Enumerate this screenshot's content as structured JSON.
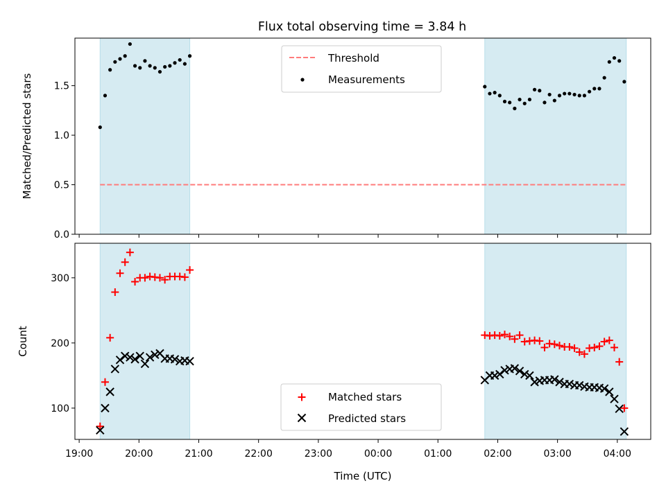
{
  "title": "Flux total observing time = 3.84 h",
  "colors": {
    "shade": "#add8e6",
    "threshold": "#ff7b7b",
    "measurements": "#000000",
    "matched": "#ff0000",
    "predicted": "#000000"
  },
  "chart_data": [
    {
      "type": "scatter",
      "ylabel": "Matched/Predicted stars",
      "ylim": [
        0,
        1.98
      ],
      "yticks": [
        "0.0",
        "0.5",
        "1.0",
        "1.5"
      ],
      "shaded_ranges": [
        [
          "19:21",
          "20:51"
        ],
        [
          "01:47",
          "04:09"
        ]
      ],
      "threshold": {
        "name": "Threshold",
        "y": 0.5,
        "x_range": [
          "19:21",
          "04:09"
        ]
      },
      "legend": {
        "position": "upper center",
        "entries": [
          "Threshold",
          "Measurements"
        ]
      },
      "series": [
        {
          "name": "Measurements",
          "points": [
            [
              "19:21",
              1.08
            ],
            [
              "19:26",
              1.4
            ],
            [
              "19:31",
              1.66
            ],
            [
              "19:36",
              1.74
            ],
            [
              "19:41",
              1.77
            ],
            [
              "19:46",
              1.8
            ],
            [
              "19:51",
              1.92
            ],
            [
              "19:56",
              1.7
            ],
            [
              "20:01",
              1.68
            ],
            [
              "20:06",
              1.75
            ],
            [
              "20:11",
              1.7
            ],
            [
              "20:16",
              1.68
            ],
            [
              "20:21",
              1.64
            ],
            [
              "20:26",
              1.69
            ],
            [
              "20:31",
              1.7
            ],
            [
              "20:36",
              1.73
            ],
            [
              "20:41",
              1.76
            ],
            [
              "20:46",
              1.72
            ],
            [
              "20:51",
              1.8
            ],
            [
              "01:47",
              1.49
            ],
            [
              "01:52",
              1.42
            ],
            [
              "01:57",
              1.43
            ],
            [
              "02:02",
              1.4
            ],
            [
              "02:07",
              1.34
            ],
            [
              "02:12",
              1.33
            ],
            [
              "02:17",
              1.27
            ],
            [
              "02:22",
              1.36
            ],
            [
              "02:27",
              1.32
            ],
            [
              "02:32",
              1.36
            ],
            [
              "02:37",
              1.46
            ],
            [
              "02:42",
              1.45
            ],
            [
              "02:47",
              1.33
            ],
            [
              "02:52",
              1.41
            ],
            [
              "02:57",
              1.35
            ],
            [
              "03:02",
              1.4
            ],
            [
              "03:07",
              1.42
            ],
            [
              "03:12",
              1.42
            ],
            [
              "03:17",
              1.41
            ],
            [
              "03:22",
              1.4
            ],
            [
              "03:27",
              1.4
            ],
            [
              "03:32",
              1.44
            ],
            [
              "03:37",
              1.47
            ],
            [
              "03:42",
              1.47
            ],
            [
              "03:47",
              1.58
            ],
            [
              "03:52",
              1.74
            ],
            [
              "03:57",
              1.78
            ],
            [
              "04:02",
              1.75
            ],
            [
              "04:07",
              1.54
            ]
          ]
        }
      ]
    },
    {
      "type": "scatter",
      "xlabel": "Time (UTC)",
      "ylabel": "Count",
      "ylim": [
        52,
        353
      ],
      "yticks": [
        "100",
        "200",
        "300"
      ],
      "xticks": [
        "19:00",
        "20:00",
        "21:00",
        "22:00",
        "23:00",
        "00:00",
        "01:00",
        "02:00",
        "03:00",
        "04:00"
      ],
      "shaded_ranges": [
        [
          "19:21",
          "20:51"
        ],
        [
          "01:47",
          "04:09"
        ]
      ],
      "legend": {
        "position": "lower center",
        "entries": [
          "Matched stars",
          "Predicted stars"
        ]
      },
      "series": [
        {
          "name": "Matched stars",
          "marker": "+",
          "points": [
            [
              "19:21",
              72
            ],
            [
              "19:26",
              140
            ],
            [
              "19:31",
              208
            ],
            [
              "19:36",
              278
            ],
            [
              "19:41",
              307
            ],
            [
              "19:46",
              324
            ],
            [
              "19:51",
              339
            ],
            [
              "19:56",
              294
            ],
            [
              "20:01",
              300
            ],
            [
              "20:06",
              300
            ],
            [
              "20:11",
              302
            ],
            [
              "20:16",
              301
            ],
            [
              "20:21",
              300
            ],
            [
              "20:26",
              297
            ],
            [
              "20:31",
              302
            ],
            [
              "20:36",
              302
            ],
            [
              "20:41",
              302
            ],
            [
              "20:46",
              301
            ],
            [
              "20:51",
              312
            ],
            [
              "01:47",
              212
            ],
            [
              "01:52",
              211
            ],
            [
              "01:57",
              212
            ],
            [
              "02:02",
              211
            ],
            [
              "02:07",
              213
            ],
            [
              "02:12",
              210
            ],
            [
              "02:17",
              206
            ],
            [
              "02:22",
              212
            ],
            [
              "02:27",
              202
            ],
            [
              "02:32",
              203
            ],
            [
              "02:37",
              204
            ],
            [
              "02:42",
              203
            ],
            [
              "02:47",
              193
            ],
            [
              "02:52",
              199
            ],
            [
              "02:57",
              198
            ],
            [
              "03:02",
              196
            ],
            [
              "03:07",
              194
            ],
            [
              "03:12",
              194
            ],
            [
              "03:17",
              192
            ],
            [
              "03:22",
              186
            ],
            [
              "03:27",
              183
            ],
            [
              "03:32",
              192
            ],
            [
              "03:37",
              193
            ],
            [
              "03:42",
              195
            ],
            [
              "03:47",
              202
            ],
            [
              "03:52",
              204
            ],
            [
              "03:57",
              193
            ],
            [
              "04:02",
              171
            ],
            [
              "04:07",
              100
            ]
          ]
        },
        {
          "name": "Predicted stars",
          "marker": "x",
          "points": [
            [
              "19:21",
              66
            ],
            [
              "19:26",
              100
            ],
            [
              "19:31",
              125
            ],
            [
              "19:36",
              160
            ],
            [
              "19:41",
              174
            ],
            [
              "19:46",
              180
            ],
            [
              "19:51",
              178
            ],
            [
              "19:56",
              175
            ],
            [
              "20:01",
              180
            ],
            [
              "20:06",
              168
            ],
            [
              "20:11",
              178
            ],
            [
              "20:16",
              182
            ],
            [
              "20:21",
              184
            ],
            [
              "20:26",
              176
            ],
            [
              "20:31",
              176
            ],
            [
              "20:36",
              175
            ],
            [
              "20:41",
              172
            ],
            [
              "20:46",
              173
            ],
            [
              "20:51",
              172
            ],
            [
              "01:47",
              143
            ],
            [
              "01:52",
              150
            ],
            [
              "01:57",
              150
            ],
            [
              "02:02",
              152
            ],
            [
              "02:07",
              158
            ],
            [
              "02:12",
              160
            ],
            [
              "02:17",
              161
            ],
            [
              "02:22",
              157
            ],
            [
              "02:27",
              152
            ],
            [
              "02:32",
              150
            ],
            [
              "02:37",
              140
            ],
            [
              "02:42",
              142
            ],
            [
              "02:47",
              143
            ],
            [
              "02:52",
              143
            ],
            [
              "02:57",
              144
            ],
            [
              "03:02",
              140
            ],
            [
              "03:07",
              137
            ],
            [
              "03:12",
              137
            ],
            [
              "03:17",
              135
            ],
            [
              "03:22",
              135
            ],
            [
              "03:27",
              133
            ],
            [
              "03:32",
              132
            ],
            [
              "03:37",
              132
            ],
            [
              "03:42",
              131
            ],
            [
              "03:47",
              130
            ],
            [
              "03:52",
              125
            ],
            [
              "03:57",
              114
            ],
            [
              "04:02",
              99
            ],
            [
              "04:07",
              64
            ]
          ]
        }
      ]
    }
  ]
}
